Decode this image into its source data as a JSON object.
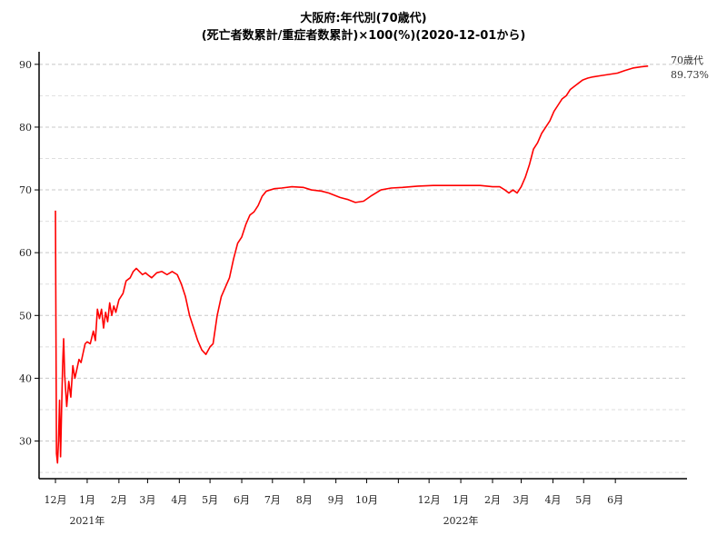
{
  "chart_data": {
    "type": "line",
    "title": "大阪府:年代別(70歳代)",
    "subtitle": "(死亡者数累計/重症者数累計)×100(%)(2020-12-01から)",
    "xlabel": "",
    "ylabel": "",
    "ylim": [
      24,
      92
    ],
    "xlim": [
      "2020-11-15",
      "2022-08-10"
    ],
    "grid": true,
    "legend": "none",
    "colors": {
      "series": "#ff0000"
    },
    "y_ticks": [
      30,
      40,
      50,
      60,
      70,
      80,
      90
    ],
    "y_minor_ticks": [
      25,
      35,
      45,
      55,
      65,
      75,
      85
    ],
    "x_ticks": [
      {
        "label": "12月",
        "date": "2020-12-01"
      },
      {
        "label": "1月",
        "date": "2021-01-01"
      },
      {
        "label": "2月",
        "date": "2021-02-01"
      },
      {
        "label": "3月",
        "date": "2021-03-01"
      },
      {
        "label": "4月",
        "date": "2021-04-01"
      },
      {
        "label": "5月",
        "date": "2021-05-01"
      },
      {
        "label": "6月",
        "date": "2021-06-01"
      },
      {
        "label": "7月",
        "date": "2021-07-01"
      },
      {
        "label": "8月",
        "date": "2021-08-01"
      },
      {
        "label": "9月",
        "date": "2021-09-01"
      },
      {
        "label": "10月",
        "date": "2021-10-01"
      },
      {
        "label": "",
        "date": "2021-11-01"
      },
      {
        "label": "12月",
        "date": "2021-12-01"
      },
      {
        "label": "1月",
        "date": "2022-01-01"
      },
      {
        "label": "2月",
        "date": "2022-02-01"
      },
      {
        "label": "3月",
        "date": "2022-03-01"
      },
      {
        "label": "4月",
        "date": "2022-04-01"
      },
      {
        "label": "5月",
        "date": "2022-05-01"
      },
      {
        "label": "6月",
        "date": "2022-06-01"
      }
    ],
    "year_labels": [
      {
        "label": "2021年",
        "date": "2021-01-01"
      },
      {
        "label": "2022年",
        "date": "2022-01-01"
      }
    ],
    "annotation": {
      "series_label": "70歳代",
      "value_label": "89.73%"
    },
    "series": [
      {
        "name": "70歳代",
        "x": [
          "2020-12-01",
          "2020-12-02",
          "2020-12-03",
          "2020-12-04",
          "2020-12-05",
          "2020-12-06",
          "2020-12-07",
          "2020-12-08",
          "2020-12-09",
          "2020-12-10",
          "2020-12-11",
          "2020-12-12",
          "2020-12-14",
          "2020-12-16",
          "2020-12-18",
          "2020-12-20",
          "2020-12-22",
          "2020-12-24",
          "2020-12-26",
          "2020-12-28",
          "2020-12-30",
          "2021-01-01",
          "2021-01-04",
          "2021-01-07",
          "2021-01-09",
          "2021-01-11",
          "2021-01-13",
          "2021-01-15",
          "2021-01-17",
          "2021-01-19",
          "2021-01-21",
          "2021-01-23",
          "2021-01-25",
          "2021-01-27",
          "2021-01-29",
          "2021-02-01",
          "2021-02-03",
          "2021-02-05",
          "2021-02-08",
          "2021-02-12",
          "2021-02-15",
          "2021-02-18",
          "2021-02-21",
          "2021-02-24",
          "2021-02-27",
          "2021-03-01",
          "2021-03-05",
          "2021-03-10",
          "2021-03-15",
          "2021-03-20",
          "2021-03-25",
          "2021-03-30",
          "2021-04-03",
          "2021-04-07",
          "2021-04-11",
          "2021-04-15",
          "2021-04-19",
          "2021-04-23",
          "2021-04-27",
          "2021-05-01",
          "2021-05-04",
          "2021-05-08",
          "2021-05-12",
          "2021-05-16",
          "2021-05-20",
          "2021-05-24",
          "2021-05-28",
          "2021-06-01",
          "2021-06-05",
          "2021-06-09",
          "2021-06-13",
          "2021-06-17",
          "2021-06-21",
          "2021-06-25",
          "2021-06-29",
          "2021-07-03",
          "2021-07-10",
          "2021-07-20",
          "2021-07-31",
          "2021-08-08",
          "2021-08-18",
          "2021-08-25",
          "2021-09-05",
          "2021-09-12",
          "2021-09-20",
          "2021-09-28",
          "2021-10-05",
          "2021-10-15",
          "2021-10-25",
          "2021-11-05",
          "2021-11-20",
          "2021-12-05",
          "2021-12-20",
          "2022-01-05",
          "2022-01-20",
          "2022-02-01",
          "2022-02-08",
          "2022-02-13",
          "2022-02-17",
          "2022-02-21",
          "2022-02-25",
          "2022-03-01",
          "2022-03-05",
          "2022-03-09",
          "2022-03-13",
          "2022-03-17",
          "2022-03-21",
          "2022-03-25",
          "2022-03-29",
          "2022-04-02",
          "2022-04-06",
          "2022-04-10",
          "2022-04-14",
          "2022-04-18",
          "2022-04-22",
          "2022-04-26",
          "2022-04-30",
          "2022-05-05",
          "2022-05-10",
          "2022-05-18",
          "2022-05-26",
          "2022-06-03",
          "2022-06-10",
          "2022-06-18",
          "2022-06-26",
          "2022-07-03"
        ],
        "values": [
          66.7,
          28.0,
          26.5,
          30.0,
          36.5,
          27.5,
          35.0,
          42.0,
          46.3,
          40.5,
          38.0,
          35.5,
          39.5,
          37.0,
          42.0,
          40.0,
          41.5,
          43.0,
          42.5,
          44.0,
          45.5,
          45.8,
          45.5,
          47.5,
          46.0,
          51.0,
          49.5,
          51.0,
          48.0,
          50.5,
          49.0,
          52.0,
          50.0,
          51.5,
          50.5,
          52.5,
          53.0,
          53.5,
          55.5,
          56.0,
          57.0,
          57.5,
          57.0,
          56.5,
          56.8,
          56.5,
          56.0,
          56.8,
          57.0,
          56.5,
          57.0,
          56.5,
          55.0,
          53.0,
          50.0,
          48.0,
          46.0,
          44.5,
          43.8,
          45.0,
          45.5,
          50.0,
          53.0,
          54.5,
          56.0,
          59.0,
          61.5,
          62.5,
          64.5,
          66.0,
          66.5,
          67.5,
          69.0,
          69.8,
          70.0,
          70.2,
          70.3,
          70.5,
          70.4,
          70.0,
          69.8,
          69.5,
          68.8,
          68.5,
          68.0,
          68.2,
          69.0,
          70.0,
          70.3,
          70.4,
          70.6,
          70.7,
          70.7,
          70.7,
          70.7,
          70.5,
          70.5,
          70.0,
          69.5,
          70.0,
          69.5,
          70.5,
          72.0,
          74.0,
          76.5,
          77.5,
          79.0,
          80.0,
          81.0,
          82.5,
          83.5,
          84.5,
          85.0,
          86.0,
          86.5,
          87.0,
          87.5,
          87.8,
          88.0,
          88.2,
          88.4,
          88.6,
          89.0,
          89.4,
          89.6,
          89.73
        ]
      }
    ]
  }
}
